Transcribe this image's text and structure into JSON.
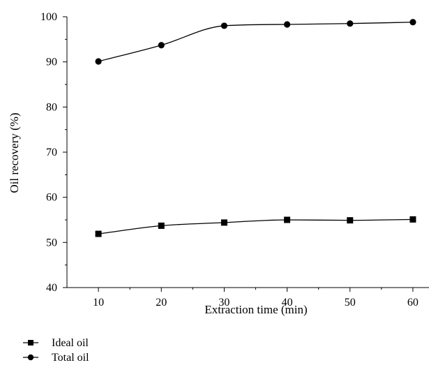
{
  "chart_data": {
    "type": "line",
    "title": "",
    "xlabel": "Extraction time (min)",
    "ylabel": "Oil recovery (%)",
    "xlim": [
      5,
      65
    ],
    "ylim": [
      40,
      100
    ],
    "x": [
      10,
      20,
      30,
      40,
      50,
      60
    ],
    "xticks": [
      10,
      20,
      30,
      40,
      50,
      60
    ],
    "yticks": [
      40,
      50,
      60,
      70,
      80,
      90,
      100
    ],
    "grid": false,
    "legend_position": "bottom-left",
    "series": [
      {
        "name": "Ideal oil",
        "marker": "square",
        "color": "#000000",
        "values": [
          51.9,
          53.7,
          54.4,
          55.0,
          54.9,
          55.1
        ]
      },
      {
        "name": "Total oil",
        "marker": "circle",
        "color": "#000000",
        "values": [
          90.1,
          93.7,
          98.0,
          98.3,
          98.5,
          98.8
        ]
      }
    ]
  }
}
